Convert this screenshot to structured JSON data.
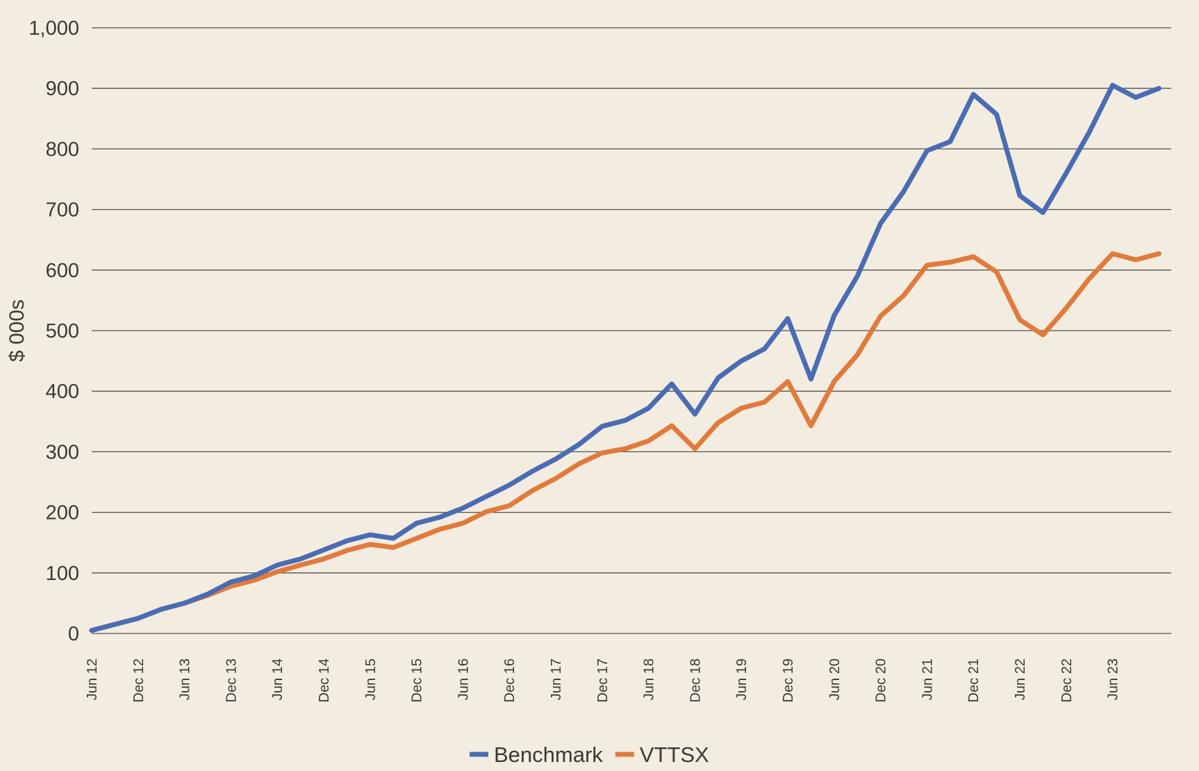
{
  "chart_data": {
    "type": "line",
    "ylabel": "$ 000s",
    "xlabel": "",
    "title": "",
    "ylim": [
      0,
      1000
    ],
    "yticks": [
      0,
      100,
      200,
      300,
      400,
      500,
      600,
      700,
      800,
      900,
      1000
    ],
    "ytick_labels": [
      "0",
      "100",
      "200",
      "300",
      "400",
      "500",
      "600",
      "700",
      "800",
      "900",
      "1,000"
    ],
    "grid": true,
    "legend_position": "bottom-center",
    "xtick_labels": [
      "Jun 12",
      "Dec 12",
      "Jun 13",
      "Dec 13",
      "Jun 14",
      "Dec 14",
      "Jun 15",
      "Dec 15",
      "Jun 16",
      "Dec 16",
      "Jun 17",
      "Dec 17",
      "Jun 18",
      "Dec 18",
      "Jun 19",
      "Dec 19",
      "Jun 20",
      "Dec 20",
      "Jun 21",
      "Dec 21",
      "Jun 22",
      "Dec 22",
      "Jun 23"
    ],
    "x_period": "quarterly, Jun 2012 to Dec 2023",
    "series": [
      {
        "name": "Benchmark",
        "color": "#4a6cb3",
        "values": [
          5,
          15,
          25,
          40,
          50,
          65,
          85,
          95,
          113,
          123,
          138,
          153,
          163,
          157,
          182,
          192,
          207,
          226,
          245,
          268,
          288,
          312,
          342,
          352,
          372,
          412,
          362,
          422,
          450,
          470,
          520,
          420,
          525,
          590,
          677,
          730,
          797,
          812,
          890,
          857,
          723,
          695,
          760,
          828,
          905,
          885,
          900
        ]
      },
      {
        "name": "VTTSX",
        "color": "#e07b3c",
        "values": [
          5,
          15,
          25,
          40,
          50,
          63,
          78,
          88,
          102,
          113,
          123,
          137,
          147,
          142,
          157,
          172,
          182,
          201,
          211,
          236,
          256,
          280,
          298,
          305,
          318,
          343,
          305,
          348,
          372,
          382,
          416,
          343,
          416,
          460,
          524,
          558,
          608,
          613,
          622,
          597,
          518,
          493,
          537,
          586,
          627,
          617,
          627
        ]
      }
    ]
  }
}
